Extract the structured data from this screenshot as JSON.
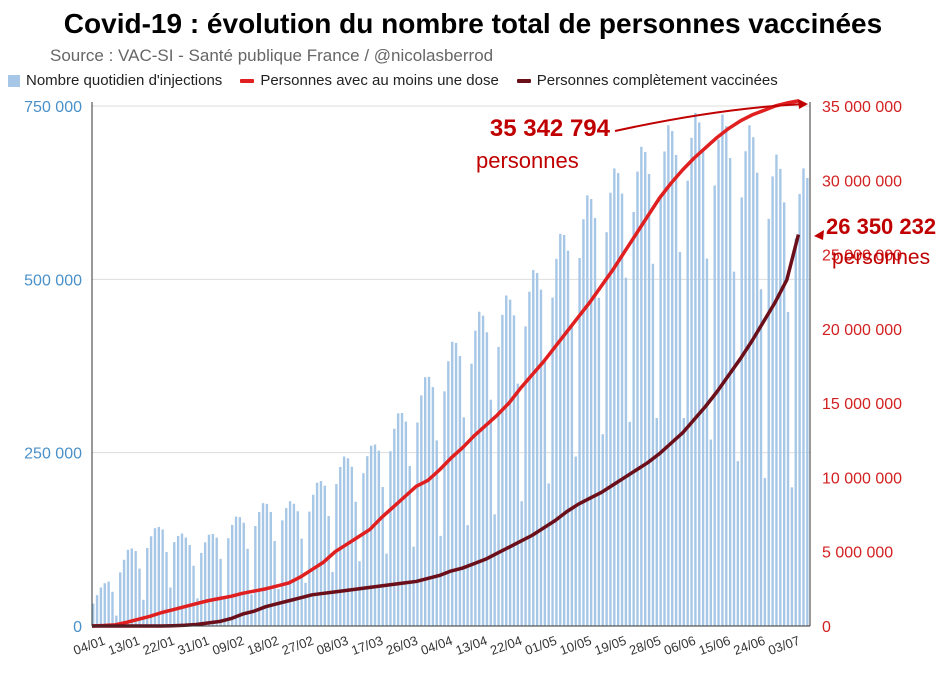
{
  "header": {
    "title": "Covid-19 : évolution du nombre total de personnes vaccinées",
    "source": "Source : VAC-SI - Santé publique France / @nicolasberrod"
  },
  "legend": {
    "items": [
      {
        "label": "Nombre quotidien d'injections",
        "color": "#a7c7e7"
      },
      {
        "label": "Personnes avec au moins une dose",
        "color": "#e02020"
      },
      {
        "label": "Personnes complètement vaccinées",
        "color": "#6b0f1a"
      }
    ]
  },
  "chart_data": {
    "type": "bar+line",
    "title": "Covid-19 : évolution du nombre total de personnes vaccinées",
    "x_tick_labels": [
      "04/01",
      "13/01",
      "22/01",
      "31/01",
      "09/02",
      "18/02",
      "27/02",
      "08/03",
      "17/03",
      "26/03",
      "04/04",
      "13/04",
      "22/04",
      "01/05",
      "10/05",
      "19/05",
      "28/05",
      "06/06",
      "15/06",
      "24/06",
      "03/07"
    ],
    "y_left": {
      "ylim": [
        0,
        750000
      ],
      "ticks": [
        0,
        250000,
        500000,
        750000
      ],
      "tick_labels": [
        "0",
        "250 000",
        "500 000",
        "750 000"
      ],
      "color": "#4a90c8"
    },
    "y_right": {
      "ylim": [
        0,
        35000000
      ],
      "ticks": [
        0,
        5000000,
        10000000,
        15000000,
        20000000,
        25000000,
        30000000,
        35000000
      ],
      "tick_labels": [
        "0",
        "5 000 000",
        "10 000 000",
        "15 000 000",
        "20 000 000",
        "25 000 000",
        "30 000 000",
        "35 000 000"
      ],
      "color": "#d32020"
    },
    "series": [
      {
        "name": "Nombre quotidien d'injections",
        "type": "bar",
        "axis": "left",
        "color": "#a7c7e7",
        "weekly_peak": [
          40000,
          110000,
          150000,
          120000,
          155000,
          180000,
          180000,
          240000,
          260000,
          320000,
          390000,
          450000,
          480000,
          530000,
          610000,
          660000,
          700000,
          740000,
          740000,
          720000,
          660000
        ],
        "weekend_min": [
          5000,
          20000,
          60000,
          40000,
          40000,
          50000,
          60000,
          80000,
          100000,
          110000,
          130000,
          150000,
          170000,
          200000,
          250000,
          290000,
          300000,
          300000,
          260000,
          220000,
          200000
        ]
      },
      {
        "name": "Personnes avec au moins une dose",
        "type": "line",
        "axis": "right",
        "color": "#e02020",
        "x": [
          0,
          3,
          6,
          9,
          12,
          15,
          18,
          21,
          24,
          27,
          30,
          33,
          36,
          39,
          42,
          45,
          48,
          51,
          54,
          57,
          60,
          63,
          66,
          69,
          72,
          75,
          78,
          81,
          84,
          87,
          90,
          93,
          96,
          99,
          102,
          105,
          108,
          111,
          114,
          117,
          120,
          123,
          126,
          129,
          132,
          135,
          138,
          141,
          144,
          147,
          150,
          153,
          156,
          159,
          162,
          165,
          168,
          171,
          174,
          177,
          180,
          183
        ],
        "y": [
          0,
          30000,
          80000,
          250000,
          450000,
          650000,
          900000,
          1100000,
          1300000,
          1500000,
          1700000,
          1850000,
          2000000,
          2200000,
          2350000,
          2500000,
          2700000,
          2900000,
          3300000,
          3800000,
          4300000,
          5000000,
          5500000,
          6000000,
          6500000,
          7300000,
          8000000,
          8700000,
          9400000,
          9800000,
          10500000,
          11300000,
          12000000,
          12800000,
          13500000,
          14200000,
          15000000,
          16000000,
          16900000,
          17800000,
          18800000,
          19800000,
          20800000,
          21800000,
          22900000,
          24000000,
          25200000,
          26400000,
          27600000,
          28800000,
          29800000,
          30700000,
          31500000,
          32200000,
          32900000,
          33500000,
          34000000,
          34400000,
          34700000,
          35000000,
          35200000,
          35342794
        ]
      },
      {
        "name": "Personnes complètement vaccinées",
        "type": "line",
        "axis": "right",
        "color": "#6b0f1a",
        "x": [
          0,
          3,
          6,
          9,
          12,
          15,
          18,
          21,
          24,
          27,
          30,
          33,
          36,
          39,
          42,
          45,
          48,
          51,
          54,
          57,
          60,
          63,
          66,
          69,
          72,
          75,
          78,
          81,
          84,
          87,
          90,
          93,
          96,
          99,
          102,
          105,
          108,
          111,
          114,
          117,
          120,
          123,
          126,
          129,
          132,
          135,
          138,
          141,
          144,
          147,
          150,
          153,
          156,
          159,
          162,
          165,
          168,
          171,
          174,
          177,
          180,
          183
        ],
        "y": [
          0,
          0,
          0,
          0,
          0,
          0,
          0,
          20000,
          50000,
          100000,
          200000,
          300000,
          500000,
          800000,
          1000000,
          1300000,
          1500000,
          1700000,
          1900000,
          2100000,
          2200000,
          2300000,
          2400000,
          2500000,
          2600000,
          2700000,
          2800000,
          2900000,
          3000000,
          3200000,
          3400000,
          3700000,
          3900000,
          4200000,
          4500000,
          4900000,
          5300000,
          5700000,
          6100000,
          6600000,
          7100000,
          7700000,
          8200000,
          8600000,
          9000000,
          9500000,
          10000000,
          10500000,
          11000000,
          11600000,
          12300000,
          13000000,
          13900000,
          14800000,
          15800000,
          16900000,
          18000000,
          19200000,
          20500000,
          21800000,
          23300000,
          26350232
        ]
      }
    ],
    "annotations": [
      {
        "value": "35 342 794",
        "text": "personnes",
        "series": "Personnes avec au moins une dose"
      },
      {
        "value": "26 350 232",
        "text": "personnes",
        "series": "Personnes complètement vaccinées"
      }
    ]
  }
}
